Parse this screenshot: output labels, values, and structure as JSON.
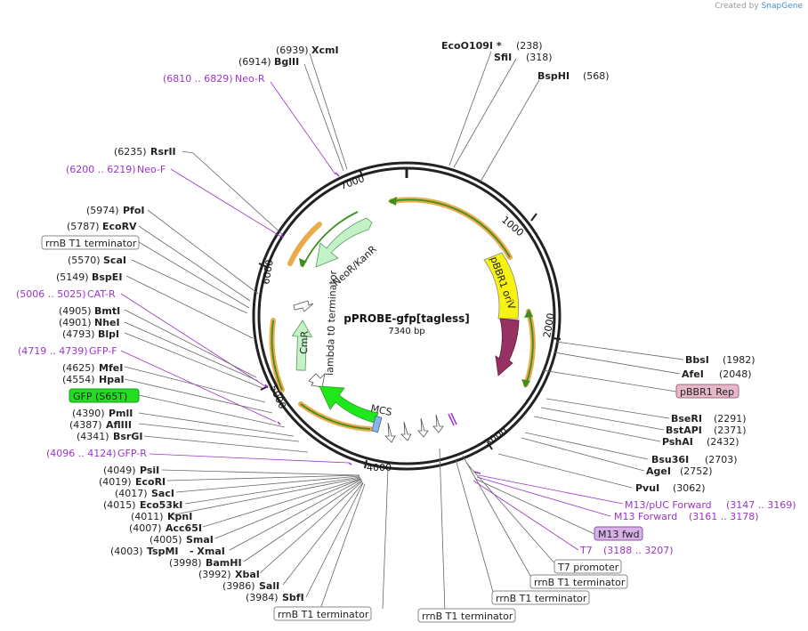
{
  "credit": {
    "prefix": "Created by",
    "brand": "SnapGene"
  },
  "plasmid": {
    "name": "pPROBE-gfp[tagless]",
    "size": "7340 bp"
  },
  "ticks": [
    "1000",
    "2000",
    "3000",
    "4000",
    "5000",
    "6000",
    "7000"
  ],
  "feature_labels": {
    "pbbr1_oriv": "pBBR1 oriV",
    "neor": "NeoR/KanR",
    "lambda": "lambda t0 terminator",
    "cmr": "CmR",
    "mcs": "MCS"
  },
  "top_labels": [
    {
      "pos": "(6939)",
      "name": "XcmI"
    },
    {
      "pos": "(6914)",
      "name": "BglII"
    },
    {
      "pos": "(6810 .. 6829)",
      "name": "Neo-R"
    },
    {
      "pos": "(238)",
      "name": "EcoO109I *"
    },
    {
      "pos": "(318)",
      "name": "SfiI"
    },
    {
      "pos": "(568)",
      "name": "BspHI"
    }
  ],
  "left_labels": [
    {
      "pos": "(6235)",
      "name": "RsrII"
    },
    {
      "pos": "(6200 .. 6219)",
      "name": "Neo-F"
    },
    {
      "pos": "(5974)",
      "name": "PfoI"
    },
    {
      "pos": "(5787)",
      "name": "EcoRV"
    },
    {
      "box": "rrnB T1 terminator"
    },
    {
      "pos": "(5570)",
      "name": "ScaI"
    },
    {
      "pos": "(5149)",
      "name": "BspEI"
    },
    {
      "pos": "(5006 .. 5025)",
      "name": "CAT-R"
    },
    {
      "pos": "(4905)",
      "name": "BmtI"
    },
    {
      "pos": "(4901)",
      "name": "NheI"
    },
    {
      "pos": "(4793)",
      "name": "BlpI"
    },
    {
      "pos": "(4719 .. 4739)",
      "name": "GFP-F"
    },
    {
      "pos": "(4625)",
      "name": "MfeI"
    },
    {
      "pos": "(4554)",
      "name": "HpaI"
    },
    {
      "box": "GFP (S65T)"
    },
    {
      "pos": "(4390)",
      "name": "PmlI"
    },
    {
      "pos": "(4387)",
      "name": "AflIII"
    },
    {
      "pos": "(4341)",
      "name": "BsrGI"
    },
    {
      "pos": "(4096 .. 4124)",
      "name": "GFP-R"
    },
    {
      "pos": "(4049)",
      "name": "PsiI"
    },
    {
      "pos": "(4019)",
      "name": "EcoRI"
    },
    {
      "pos": "(4017)",
      "name": "SacI"
    },
    {
      "pos": "(4015)",
      "name": "Eco53kI"
    },
    {
      "pos": "(4011)",
      "name": "KpnI"
    },
    {
      "pos": "(4007)",
      "name": "Acc65I"
    },
    {
      "pos": "(4005)",
      "name": "SmaI"
    },
    {
      "pos": "(4003)",
      "name": "TspMI",
      "extra": "- XmaI"
    },
    {
      "pos": "(3998)",
      "name": "BamHI"
    },
    {
      "pos": "(3992)",
      "name": "XbaI"
    },
    {
      "pos": "(3986)",
      "name": "SalI"
    },
    {
      "pos": "(3984)",
      "name": "SbfI"
    }
  ],
  "right_labels": [
    {
      "name": "BbsI",
      "pos": "(1982)"
    },
    {
      "name": "AfeI",
      "pos": "(2048)"
    },
    {
      "box": "pBBR1 Rep"
    },
    {
      "name": "BseRI",
      "pos": "(2291)"
    },
    {
      "name": "BstAPI",
      "pos": "(2371)"
    },
    {
      "name": "PshAI",
      "pos": "(2432)"
    },
    {
      "name": "Bsu36I",
      "pos": "(2703)"
    },
    {
      "name": "AgeI",
      "pos": "(2752)"
    },
    {
      "name": "PvuI",
      "pos": "(3062)"
    },
    {
      "name": "M13/pUC Forward",
      "pos": "(3147 .. 3169)"
    },
    {
      "name": "M13 Forward",
      "pos": "(3161 .. 3178)"
    },
    {
      "box": "M13 fwd"
    },
    {
      "name": "T7",
      "pos": "(3188 .. 3207)"
    },
    {
      "box": "T7 promoter"
    },
    {
      "box": "rrnB T1 terminator"
    },
    {
      "box": "rrnB T1 terminator"
    },
    {
      "box": "rrnB T1 terminator"
    },
    {
      "box": "rrnB T1 terminator"
    }
  ],
  "colors": {
    "backbone": "#222222",
    "orange": "#e8a33a",
    "green_primer": "#3e8e1e",
    "oriv": "#f7f20f",
    "rep": "#963161",
    "neor": "#c3f2c6",
    "gfp": "#1fe81a",
    "mcs": "#8ab4e6",
    "primer": "#9b34c9",
    "rep_box": "#e6b6c9",
    "gfp_box": "#22dd22",
    "m13_box": "#d8b0e8"
  }
}
